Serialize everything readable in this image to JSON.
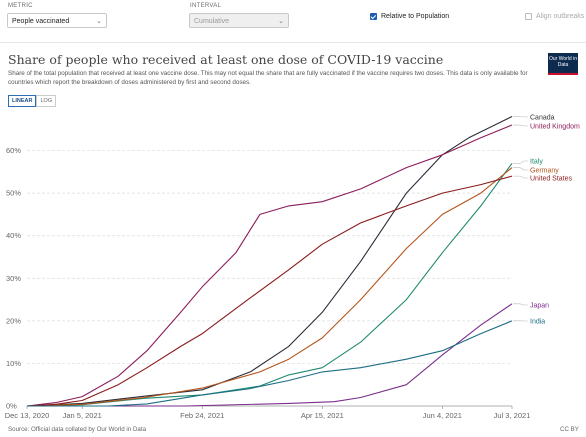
{
  "controls": {
    "metric_label": "METRIC",
    "metric_value": "People vaccinated",
    "interval_label": "INTERVAL",
    "interval_value": "Cumulative",
    "relative_label": "Relative to Population",
    "align_label": "Align outbreaks"
  },
  "header": {
    "title": "Share of people who received at least one dose of COVID-19 vaccine",
    "subtitle": "Share of the total population that received at least one vaccine dose. This may not equal the share that are fully vaccinated if the vaccine requires two doses. This data is only available for countries which report the breakdown of doses administered by first and second doses.",
    "logo": "Our World in Data",
    "linear_label": "LINEAR",
    "log_label": "LOG"
  },
  "footer": {
    "source": "Source: Official data collated by Our World in Data",
    "license": "CC BY"
  },
  "chart_data": {
    "type": "line",
    "title": "Share of people who received at least one dose of COVID-19 vaccine",
    "ylabel": "",
    "xlabel": "",
    "ylim": [
      0,
      70
    ],
    "yticks": [
      0,
      10,
      20,
      30,
      40,
      50,
      60
    ],
    "ytick_labels": [
      "0%",
      "10%",
      "20%",
      "30%",
      "40%",
      "50%",
      "60%"
    ],
    "xlim": [
      "2020-12-13",
      "2021-07-03"
    ],
    "xticks": [
      "2020-12-13",
      "2021-01-05",
      "2021-02-24",
      "2021-04-15",
      "2021-06-04",
      "2021-07-03"
    ],
    "xtick_labels": [
      "Dec 13, 2020",
      "Jan 5, 2021",
      "Feb 24, 2021",
      "Apr 15, 2021",
      "Jun 4, 2021",
      "Jul 3, 2021"
    ],
    "grid": "horizontal",
    "series": [
      {
        "name": "Canada",
        "color": "#2c2c3a",
        "label_color": "#333333",
        "points": [
          [
            "2020-12-13",
            0
          ],
          [
            "2021-01-05",
            0.6
          ],
          [
            "2021-01-31",
            2.3
          ],
          [
            "2021-02-24",
            3.8
          ],
          [
            "2021-03-16",
            8
          ],
          [
            "2021-04-01",
            14
          ],
          [
            "2021-04-15",
            22
          ],
          [
            "2021-05-01",
            34
          ],
          [
            "2021-05-20",
            50
          ],
          [
            "2021-06-04",
            59
          ],
          [
            "2021-06-15",
            63
          ],
          [
            "2021-07-03",
            68
          ]
        ]
      },
      {
        "name": "United Kingdom",
        "color": "#8c1c5a",
        "label_color": "#8c1c5a",
        "points": [
          [
            "2020-12-13",
            0
          ],
          [
            "2020-12-25",
            0.8
          ],
          [
            "2021-01-05",
            2.2
          ],
          [
            "2021-01-20",
            7
          ],
          [
            "2021-02-01",
            13
          ],
          [
            "2021-02-15",
            22
          ],
          [
            "2021-02-24",
            28
          ],
          [
            "2021-03-10",
            36
          ],
          [
            "2021-03-20",
            45
          ],
          [
            "2021-04-01",
            47
          ],
          [
            "2021-04-15",
            48
          ],
          [
            "2021-05-01",
            51
          ],
          [
            "2021-05-20",
            56
          ],
          [
            "2021-06-04",
            59
          ],
          [
            "2021-06-20",
            63
          ],
          [
            "2021-07-03",
            66
          ]
        ]
      },
      {
        "name": "Italy",
        "color": "#1f8a70",
        "label_color": "#1f8a70",
        "points": [
          [
            "2020-12-13",
            0
          ],
          [
            "2021-01-05",
            0.3
          ],
          [
            "2021-01-31",
            1.8
          ],
          [
            "2021-02-24",
            2.6
          ],
          [
            "2021-03-20",
            4.7
          ],
          [
            "2021-04-01",
            7.3
          ],
          [
            "2021-04-15",
            9
          ],
          [
            "2021-05-01",
            15
          ],
          [
            "2021-05-20",
            25
          ],
          [
            "2021-06-04",
            36
          ],
          [
            "2021-06-20",
            47
          ],
          [
            "2021-07-03",
            57
          ]
        ]
      },
      {
        "name": "Germany",
        "color": "#b5541a",
        "label_color": "#b5541a",
        "points": [
          [
            "2020-12-13",
            0
          ],
          [
            "2021-01-05",
            0.4
          ],
          [
            "2021-01-31",
            2
          ],
          [
            "2021-02-24",
            4.2
          ],
          [
            "2021-03-20",
            8
          ],
          [
            "2021-04-01",
            11
          ],
          [
            "2021-04-15",
            16
          ],
          [
            "2021-05-01",
            25
          ],
          [
            "2021-05-20",
            37
          ],
          [
            "2021-06-04",
            45
          ],
          [
            "2021-06-20",
            50
          ],
          [
            "2021-07-03",
            56
          ]
        ]
      },
      {
        "name": "United States",
        "color": "#8b1a1a",
        "label_color": "#8b1a1a",
        "points": [
          [
            "2020-12-13",
            0
          ],
          [
            "2020-12-25",
            0.4
          ],
          [
            "2021-01-05",
            1.3
          ],
          [
            "2021-01-20",
            5
          ],
          [
            "2021-02-01",
            9
          ],
          [
            "2021-02-15",
            14
          ],
          [
            "2021-02-24",
            17
          ],
          [
            "2021-03-15",
            25
          ],
          [
            "2021-04-01",
            32
          ],
          [
            "2021-04-15",
            38
          ],
          [
            "2021-05-01",
            43
          ],
          [
            "2021-05-20",
            47
          ],
          [
            "2021-06-04",
            50
          ],
          [
            "2021-06-20",
            52
          ],
          [
            "2021-07-03",
            54
          ]
        ]
      },
      {
        "name": "Japan",
        "color": "#7a2e8a",
        "label_color": "#7a2e8a",
        "points": [
          [
            "2020-12-13",
            0
          ],
          [
            "2021-02-17",
            0
          ],
          [
            "2021-04-01",
            0.6
          ],
          [
            "2021-04-20",
            1
          ],
          [
            "2021-05-01",
            2
          ],
          [
            "2021-05-20",
            5
          ],
          [
            "2021-06-04",
            12
          ],
          [
            "2021-06-20",
            19
          ],
          [
            "2021-07-03",
            24
          ]
        ]
      },
      {
        "name": "India",
        "color": "#1d6e84",
        "label_color": "#1d6e84",
        "points": [
          [
            "2020-12-13",
            0
          ],
          [
            "2021-01-16",
            0
          ],
          [
            "2021-02-01",
            0.5
          ],
          [
            "2021-02-24",
            2.6
          ],
          [
            "2021-03-15",
            4
          ],
          [
            "2021-04-01",
            6
          ],
          [
            "2021-04-15",
            8
          ],
          [
            "2021-05-01",
            9
          ],
          [
            "2021-05-20",
            11
          ],
          [
            "2021-06-04",
            13
          ],
          [
            "2021-06-20",
            17
          ],
          [
            "2021-07-03",
            20
          ]
        ]
      }
    ]
  }
}
